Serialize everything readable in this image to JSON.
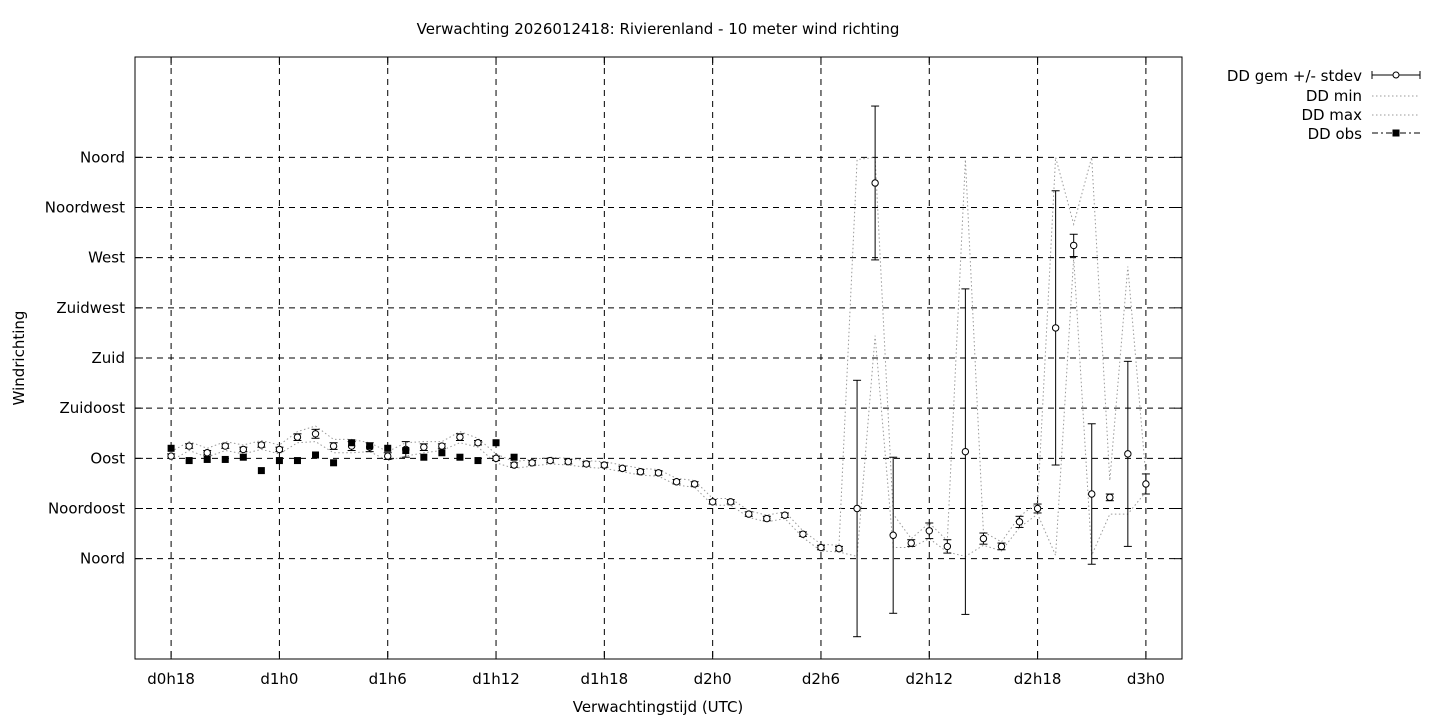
{
  "chart_data": {
    "type": "scatter",
    "title": "Verwachting 2026012418: Rivierenland - 10 meter wind richting",
    "xlabel": "Verwachtingstijd (UTC)",
    "ylabel": "Windrichting",
    "xlim": [
      -2,
      56
    ],
    "ylim": [
      -90,
      450
    ],
    "x_unit": "hours since d0h18",
    "x_ticks": [
      {
        "value": 0,
        "label": "d0h18"
      },
      {
        "value": 6,
        "label": "d1h0"
      },
      {
        "value": 12,
        "label": "d1h6"
      },
      {
        "value": 18,
        "label": "d1h12"
      },
      {
        "value": 24,
        "label": "d1h18"
      },
      {
        "value": 30,
        "label": "d2h0"
      },
      {
        "value": 36,
        "label": "d2h6"
      },
      {
        "value": 42,
        "label": "d2h12"
      },
      {
        "value": 48,
        "label": "d2h18"
      },
      {
        "value": 54,
        "label": "d3h0"
      }
    ],
    "y_ticks": [
      {
        "value": 0,
        "label": "Noord"
      },
      {
        "value": 45,
        "label": "Noordoost"
      },
      {
        "value": 90,
        "label": "Oost"
      },
      {
        "value": 135,
        "label": "Zuidoost"
      },
      {
        "value": 180,
        "label": "Zuid"
      },
      {
        "value": 225,
        "label": "Zuidwest"
      },
      {
        "value": 270,
        "label": "West"
      },
      {
        "value": 315,
        "label": "Noordwest"
      },
      {
        "value": 360,
        "label": "Noord"
      }
    ],
    "grid": true,
    "legend": {
      "position": "outside-top-right",
      "entries": [
        "DD gem +/- stdev",
        "DD min",
        "DD max",
        "DD obs"
      ]
    },
    "series": [
      {
        "name": "DD gem +/- stdev",
        "style": "points-errorbars",
        "x": [
          0,
          1,
          2,
          3,
          4,
          5,
          6,
          7,
          8,
          9,
          10,
          11,
          12,
          13,
          14,
          15,
          16,
          17,
          18,
          19,
          20,
          21,
          22,
          23,
          24,
          25,
          26,
          27,
          28,
          29,
          30,
          31,
          32,
          33,
          34,
          35,
          36,
          37,
          38,
          39,
          40,
          41,
          42,
          43,
          44,
          45,
          46,
          47,
          48,
          49,
          50,
          51,
          52,
          53,
          54
        ],
        "values": [
          92,
          101,
          95,
          101,
          98,
          102,
          98,
          109,
          112,
          101,
          101,
          100,
          92,
          98,
          100,
          101,
          109,
          104,
          90,
          84,
          86,
          88,
          87,
          85,
          84,
          81,
          78,
          77,
          69,
          67,
          51,
          51,
          40,
          36,
          39,
          22,
          10,
          9,
          45,
          337,
          21,
          14,
          25,
          11,
          96,
          18,
          11,
          33,
          45,
          207,
          281,
          58,
          55,
          94,
          67
        ],
        "stdev": [
          2,
          2,
          2,
          2,
          2,
          2,
          2,
          3,
          4,
          3,
          4,
          4,
          3,
          7,
          3,
          2,
          3,
          2,
          2,
          2,
          2,
          2,
          2,
          2,
          2,
          2,
          2,
          2,
          2,
          2,
          2,
          2,
          2,
          2,
          2,
          2,
          2,
          2,
          115,
          69,
          70,
          3,
          7,
          6,
          146,
          5,
          3,
          5,
          4,
          123,
          10,
          63,
          3,
          83,
          9
        ]
      },
      {
        "name": "DD min",
        "style": "dotted-line",
        "x": [
          0,
          1,
          2,
          3,
          4,
          5,
          6,
          7,
          8,
          9,
          10,
          11,
          12,
          13,
          14,
          15,
          16,
          17,
          18,
          19,
          20,
          21,
          22,
          23,
          24,
          25,
          26,
          27,
          28,
          29,
          30,
          31,
          32,
          33,
          34,
          35,
          36,
          37,
          38,
          39,
          40,
          41,
          42,
          43,
          44,
          45,
          46,
          47,
          48,
          49,
          50,
          51,
          52,
          53,
          54
        ],
        "values": [
          88,
          97,
          91,
          97,
          94,
          98,
          94,
          104,
          105,
          95,
          95,
          96,
          88,
          92,
          95,
          97,
          104,
          100,
          86,
          81,
          83,
          85,
          84,
          82,
          81,
          78,
          75,
          74,
          66,
          64,
          48,
          48,
          37,
          33,
          36,
          19,
          7,
          6,
          2,
          200,
          10,
          10,
          18,
          6,
          2,
          12,
          7,
          28,
          40,
          3,
          270,
          3,
          40,
          40,
          60
        ]
      },
      {
        "name": "DD max",
        "style": "dotted-line",
        "x": [
          0,
          1,
          2,
          3,
          4,
          5,
          6,
          7,
          8,
          9,
          10,
          11,
          12,
          13,
          14,
          15,
          16,
          17,
          18,
          19,
          20,
          21,
          22,
          23,
          24,
          25,
          26,
          27,
          28,
          29,
          30,
          31,
          32,
          33,
          34,
          35,
          36,
          37,
          38,
          39,
          40,
          41,
          42,
          43,
          44,
          45,
          46,
          47,
          48,
          49,
          50,
          51,
          52,
          53,
          54
        ],
        "values": [
          96,
          105,
          99,
          105,
          102,
          106,
          102,
          114,
          119,
          107,
          107,
          104,
          96,
          104,
          105,
          105,
          114,
          108,
          94,
          87,
          89,
          91,
          90,
          88,
          87,
          84,
          81,
          80,
          72,
          70,
          54,
          54,
          43,
          39,
          42,
          25,
          13,
          12,
          358,
          360,
          40,
          18,
          32,
          16,
          358,
          24,
          15,
          38,
          50,
          360,
          300,
          360,
          70,
          262,
          74
        ]
      },
      {
        "name": "DD obs",
        "style": "filled-squares",
        "x": [
          0,
          1,
          2,
          3,
          4,
          5,
          6,
          7,
          8,
          9,
          10,
          11,
          12,
          13,
          14,
          15,
          16,
          17,
          18,
          19
        ],
        "values": [
          99,
          88,
          89,
          89,
          91,
          79,
          88,
          88,
          93,
          86,
          104,
          101,
          99,
          97,
          91,
          95,
          91,
          88,
          104,
          91
        ]
      }
    ]
  }
}
